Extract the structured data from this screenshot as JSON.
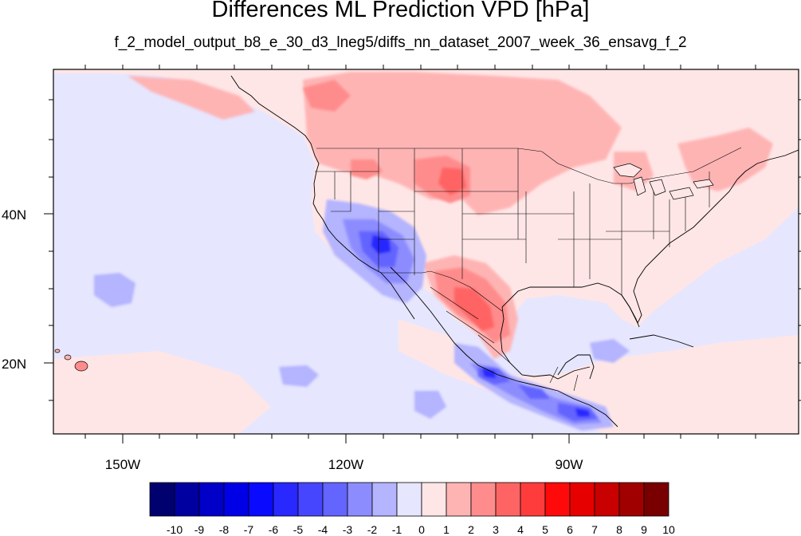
{
  "title": "Differences ML Prediction VPD [hPa]",
  "subtitle": "f_2_model_output_b8_e_30_d3_lneg5/diffs_nn_dataset_2007_week_36_ensavg_f_2",
  "axes": {
    "lat_ticks": [
      "40N",
      "20N"
    ],
    "lon_ticks": [
      "150W",
      "120W",
      "90W"
    ]
  },
  "colorbar": {
    "labels": [
      "-10",
      "-9",
      "-8",
      "-7",
      "-6",
      "-5",
      "-4",
      "-3",
      "-2",
      "-1",
      "0",
      "1",
      "2",
      "3",
      "4",
      "5",
      "6",
      "7",
      "8",
      "9",
      "10"
    ],
    "colors": [
      "#00006e",
      "#0000a0",
      "#0000c8",
      "#0000e6",
      "#0a0aff",
      "#2828ff",
      "#4646ff",
      "#6464ff",
      "#8c8cff",
      "#b4b4ff",
      "#e6e6ff",
      "#ffe6e6",
      "#ffb4b4",
      "#ff8c8c",
      "#ff6464",
      "#ff3c3c",
      "#ff0a0a",
      "#e60000",
      "#c80000",
      "#a00000",
      "#780000"
    ]
  }
}
